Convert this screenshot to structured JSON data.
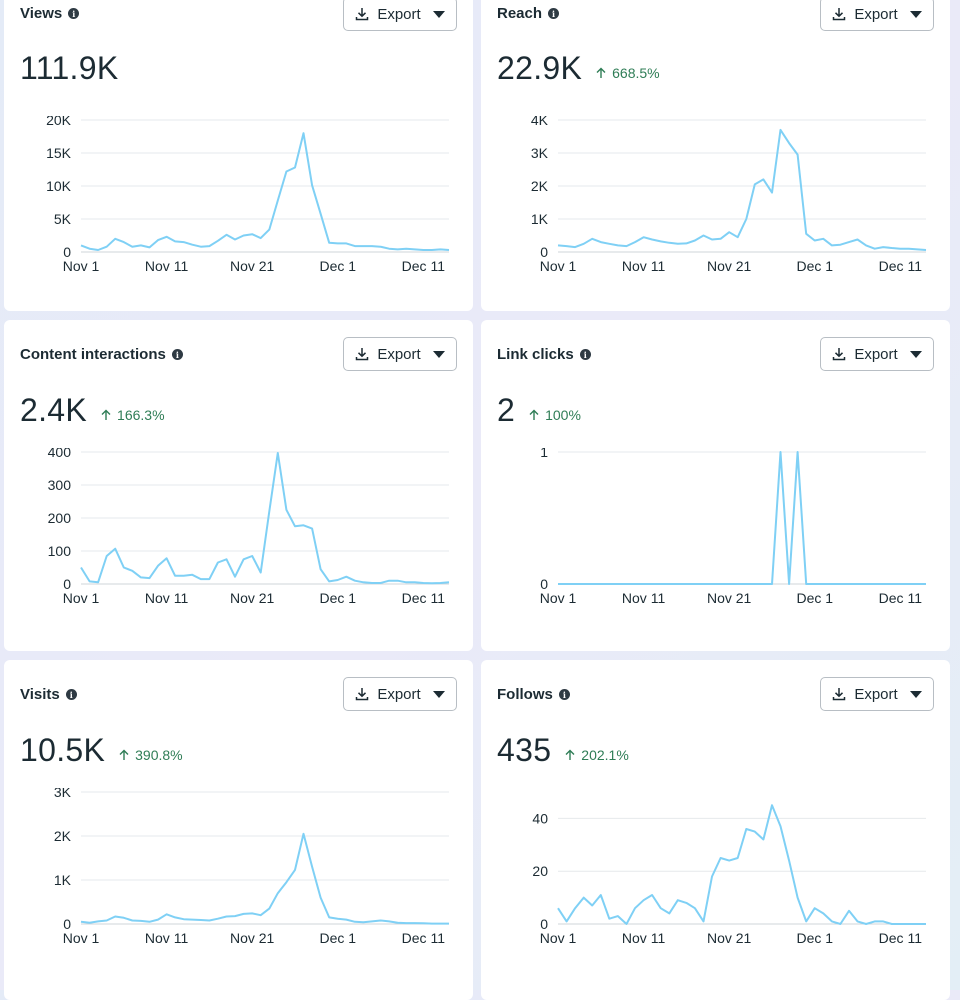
{
  "export_label": "Export",
  "cards": [
    {
      "title": "Views",
      "value": "111.9K",
      "change": "",
      "chart_data": {
        "type": "line",
        "title": "Views",
        "x_ticks": [
          "Nov 1",
          "Nov 11",
          "Nov 21",
          "Dec 1",
          "Dec 11"
        ],
        "y_ticks": [
          "0",
          "5K",
          "10K",
          "15K",
          "20K"
        ],
        "ylim": [
          0,
          20000
        ],
        "color": "#7fd0f5",
        "values": [
          1000,
          500,
          300,
          800,
          2000,
          1500,
          800,
          1000,
          700,
          1800,
          2300,
          1600,
          1500,
          1100,
          800,
          900,
          1700,
          2600,
          1900,
          2500,
          2700,
          2100,
          3400,
          7800,
          12200,
          12800,
          18000,
          10100,
          5800,
          1400,
          1300,
          1300,
          900,
          900,
          900,
          800,
          500,
          400,
          500,
          400,
          300,
          300,
          400,
          300
        ]
      }
    },
    {
      "title": "Reach",
      "value": "22.9K",
      "change": "668.5%",
      "chart_data": {
        "type": "line",
        "title": "Reach",
        "x_ticks": [
          "Nov 1",
          "Nov 11",
          "Nov 21",
          "Dec 1",
          "Dec 11"
        ],
        "y_ticks": [
          "0",
          "1K",
          "2K",
          "3K",
          "4K"
        ],
        "ylim": [
          0,
          4000
        ],
        "color": "#7fd0f5",
        "values": [
          200,
          180,
          150,
          250,
          400,
          300,
          250,
          200,
          180,
          300,
          450,
          380,
          320,
          280,
          250,
          260,
          350,
          500,
          380,
          400,
          600,
          450,
          1000,
          2050,
          2200,
          1800,
          3700,
          3300,
          2950,
          550,
          350,
          400,
          200,
          220,
          300,
          380,
          200,
          100,
          150,
          120,
          100,
          100,
          80,
          60
        ]
      }
    },
    {
      "title": "Content interactions",
      "value": "2.4K",
      "change": "166.3%",
      "chart_data": {
        "type": "line",
        "title": "Content interactions",
        "x_ticks": [
          "Nov 1",
          "Nov 11",
          "Nov 21",
          "Dec 1",
          "Dec 11"
        ],
        "y_ticks": [
          "0",
          "100",
          "200",
          "300",
          "400"
        ],
        "ylim": [
          0,
          400
        ],
        "color": "#7fd0f5",
        "values": [
          50,
          8,
          5,
          85,
          107,
          50,
          40,
          20,
          18,
          55,
          78,
          25,
          25,
          28,
          15,
          15,
          65,
          75,
          22,
          75,
          85,
          35,
          220,
          397,
          225,
          175,
          178,
          168,
          45,
          8,
          12,
          22,
          10,
          5,
          3,
          3,
          10,
          10,
          5,
          5,
          3,
          2,
          3,
          5
        ]
      }
    },
    {
      "title": "Link clicks",
      "value": "2",
      "change": "100%",
      "chart_data": {
        "type": "line",
        "title": "Link clicks",
        "x_ticks": [
          "Nov 1",
          "Nov 11",
          "Nov 21",
          "Dec 1",
          "Dec 11"
        ],
        "y_ticks": [
          "0",
          "1"
        ],
        "ylim": [
          0,
          1
        ],
        "color": "#7fd0f5",
        "values": [
          0,
          0,
          0,
          0,
          0,
          0,
          0,
          0,
          0,
          0,
          0,
          0,
          0,
          0,
          0,
          0,
          0,
          0,
          0,
          0,
          0,
          0,
          0,
          0,
          0,
          0,
          1,
          0,
          1,
          0,
          0,
          0,
          0,
          0,
          0,
          0,
          0,
          0,
          0,
          0,
          0,
          0,
          0,
          0
        ]
      }
    },
    {
      "title": "Visits",
      "value": "10.5K",
      "change": "390.8%",
      "chart_data": {
        "type": "line",
        "title": "Visits",
        "x_ticks": [
          "Nov 1",
          "Nov 11",
          "Nov 21",
          "Dec 1",
          "Dec 11"
        ],
        "y_ticks": [
          "0",
          "1K",
          "2K",
          "3K"
        ],
        "ylim": [
          0,
          3000
        ],
        "color": "#7fd0f5",
        "values": [
          50,
          30,
          60,
          80,
          170,
          140,
          80,
          70,
          50,
          100,
          220,
          150,
          110,
          100,
          90,
          80,
          120,
          170,
          180,
          230,
          240,
          200,
          350,
          700,
          950,
          1230,
          2050,
          1300,
          600,
          150,
          120,
          100,
          50,
          40,
          60,
          80,
          60,
          30,
          20,
          20,
          15,
          10,
          10,
          10
        ]
      }
    },
    {
      "title": "Follows",
      "value": "435",
      "change": "202.1%",
      "chart_data": {
        "type": "line",
        "title": "Follows",
        "x_ticks": [
          "Nov 1",
          "Nov 11",
          "Nov 21",
          "Dec 1",
          "Dec 11"
        ],
        "y_ticks": [
          "0",
          "20",
          "40"
        ],
        "ylim": [
          0,
          50
        ],
        "color": "#7fd0f5",
        "values": [
          6,
          1,
          6,
          10,
          7,
          11,
          2,
          3,
          0,
          6,
          9,
          11,
          6,
          4,
          9,
          8,
          6,
          1,
          18,
          25,
          24,
          25,
          36,
          35,
          32,
          45,
          37,
          24,
          10,
          1,
          6,
          4,
          1,
          0,
          5,
          1,
          0,
          1,
          1,
          0,
          0,
          0,
          0,
          0
        ]
      }
    }
  ]
}
